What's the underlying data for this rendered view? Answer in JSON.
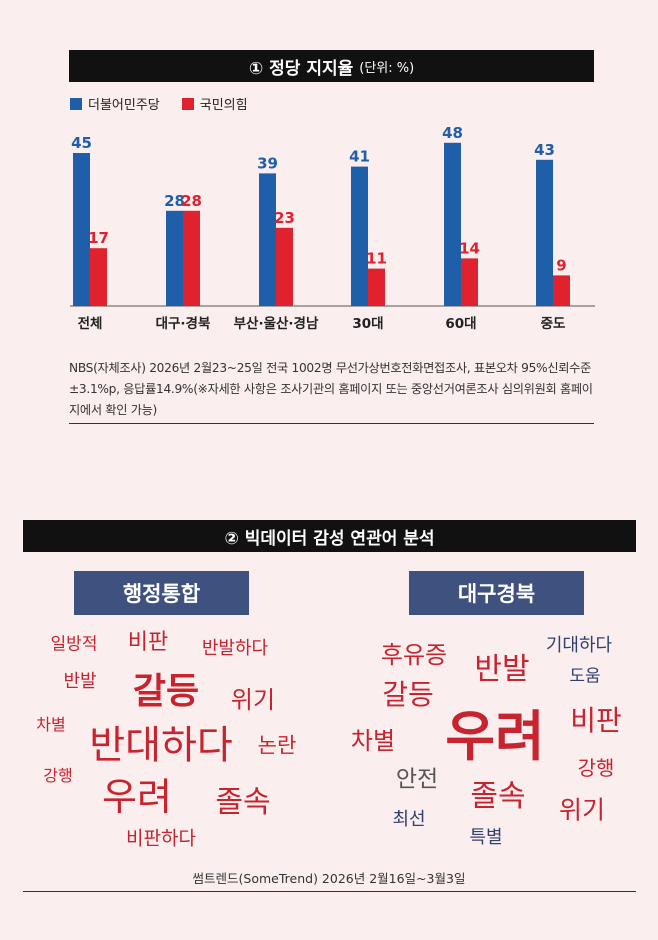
{
  "section1": {
    "title": "① 정당 지지율",
    "unit": "(단위: %)"
  },
  "chart_data": {
    "type": "bar",
    "categories": [
      "전체",
      "대구·경북",
      "부산·울산·경남",
      "30대",
      "60대",
      "중도"
    ],
    "series": [
      {
        "name": "더불어민주당",
        "values": [
          45,
          28,
          39,
          41,
          48,
          43
        ],
        "color": "#1f5faa"
      },
      {
        "name": "국민의힘",
        "values": [
          17,
          28,
          23,
          11,
          14,
          9
        ],
        "color": "#e0212e"
      }
    ],
    "ylim": [
      0,
      50
    ],
    "legend": "top-left",
    "grid": false,
    "title": "① 정당 지지율",
    "xlabel": "",
    "ylabel": ""
  },
  "note": "NBS(자체조사) 2026년 2월23~25일 전국 1002명 무선가상번호전화면접조사, 표본오차 95%신뢰수준 ±3.1%p, 응답률14.9%(※자세한 사항은 조사기관의 홈페이지 또는 중앙선거여론조사 심의위원회 홈페이지에서 확인 가능)",
  "section2": {
    "title": "② 빅데이터 감성 연관어 분석"
  },
  "clouds": {
    "left": {
      "title": "행정통합",
      "words": [
        {
          "text": "일방적",
          "color": "#c8242f"
        },
        {
          "text": "비판",
          "color": "#c8242f"
        },
        {
          "text": "반발하다",
          "color": "#c8242f"
        },
        {
          "text": "반발",
          "color": "#c8242f"
        },
        {
          "text": "갈등",
          "color": "#c8242f"
        },
        {
          "text": "위기",
          "color": "#c8242f"
        },
        {
          "text": "차별",
          "color": "#c8242f"
        },
        {
          "text": "반대하다",
          "color": "#c8242f"
        },
        {
          "text": "논란",
          "color": "#c8242f"
        },
        {
          "text": "강행",
          "color": "#c8242f"
        },
        {
          "text": "우려",
          "color": "#c8242f"
        },
        {
          "text": "졸속",
          "color": "#c8242f"
        },
        {
          "text": "비판하다",
          "color": "#c8242f"
        }
      ]
    },
    "right": {
      "title": "대구경북",
      "words": [
        {
          "text": "후유증",
          "color": "#c8242f"
        },
        {
          "text": "기대하다",
          "color": "#2f4170"
        },
        {
          "text": "반발",
          "color": "#c8242f"
        },
        {
          "text": "도움",
          "color": "#2f4170"
        },
        {
          "text": "갈등",
          "color": "#c8242f"
        },
        {
          "text": "우려",
          "color": "#c8242f"
        },
        {
          "text": "비판",
          "color": "#c8242f"
        },
        {
          "text": "차별",
          "color": "#c8242f"
        },
        {
          "text": "강행",
          "color": "#c8242f"
        },
        {
          "text": "안전",
          "color": "#555555"
        },
        {
          "text": "졸속",
          "color": "#c8242f"
        },
        {
          "text": "위기",
          "color": "#c8242f"
        },
        {
          "text": "최선",
          "color": "#2f4170"
        },
        {
          "text": "특별",
          "color": "#2f4170"
        }
      ]
    }
  },
  "source": "썸트렌드(SomeTrend) 2026년 2월16일~3월3일"
}
